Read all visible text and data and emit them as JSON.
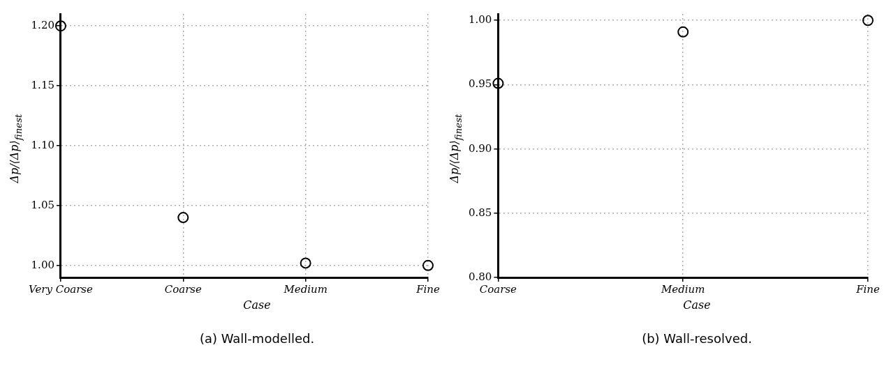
{
  "chart_data": [
    {
      "type": "scatter",
      "xlabel": "Case",
      "ylabel": "Δp/⟨Δp⟩$_{finest}$",
      "categories": [
        "Very Coarse",
        "Coarse",
        "Medium",
        "Fine"
      ],
      "series": [
        {
          "color": "#000000",
          "values": [
            1.2,
            1.04,
            1.002,
            1.0
          ]
        }
      ],
      "ylim": [
        0.99,
        1.21
      ],
      "yticks": [
        {
          "value": 1.0,
          "label": "1.00"
        },
        {
          "value": 1.05,
          "label": "1.05"
        },
        {
          "value": 1.1,
          "label": "1.10"
        },
        {
          "value": 1.15,
          "label": "1.15"
        },
        {
          "value": 1.2,
          "label": "1.20"
        }
      ],
      "grid": true,
      "marker": "circle",
      "legend": false,
      "annotations": [
        "(a) Wall-modelled."
      ]
    },
    {
      "type": "scatter",
      "xlabel": "Case",
      "ylabel": "Δp/⟨Δp⟩$_{finest}$",
      "categories": [
        "Coarse",
        "Medium",
        "Fine"
      ],
      "series": [
        {
          "color": "#000000",
          "values": [
            0.951,
            0.991,
            1.0
          ]
        }
      ],
      "ylim": [
        0.8,
        1.005
      ],
      "yticks": [
        {
          "value": 0.8,
          "label": "0.80"
        },
        {
          "value": 0.85,
          "label": "0.85"
        },
        {
          "value": 0.9,
          "label": "0.90"
        },
        {
          "value": 0.95,
          "label": "0.95"
        },
        {
          "value": 1.0,
          "label": "1.00"
        }
      ],
      "grid": true,
      "marker": "circle",
      "legend": false,
      "annotations": [
        "(b) Wall-resolved."
      ]
    }
  ]
}
